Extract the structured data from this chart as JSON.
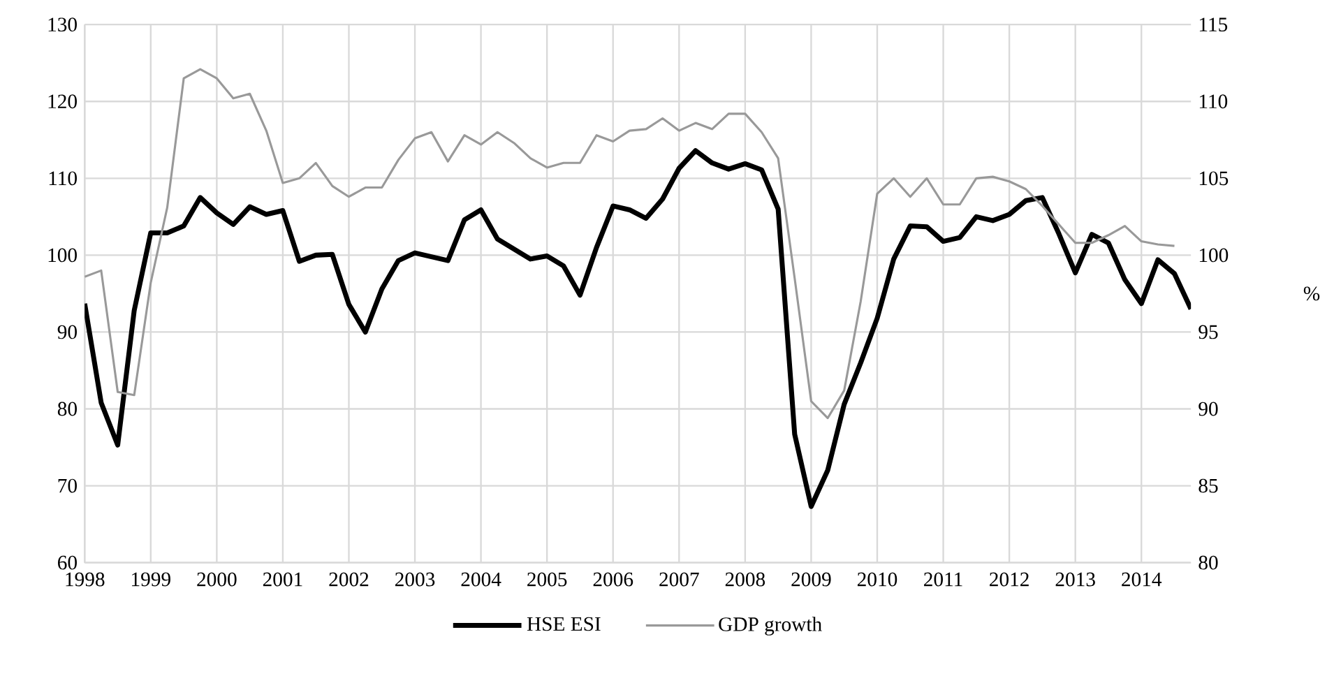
{
  "chart_data": {
    "type": "line",
    "y2label": "%",
    "legend": "bottom",
    "grid": true,
    "x": [
      1998,
      1998.25,
      1998.5,
      1998.75,
      1999,
      1999.25,
      1999.5,
      1999.75,
      2000,
      2000.25,
      2000.5,
      2000.75,
      2001,
      2001.25,
      2001.5,
      2001.75,
      2002,
      2002.25,
      2002.5,
      2002.75,
      2003,
      2003.25,
      2003.5,
      2003.75,
      2004,
      2004.25,
      2004.5,
      2004.75,
      2005,
      2005.25,
      2005.5,
      2005.75,
      2006,
      2006.25,
      2006.5,
      2006.75,
      2007,
      2007.25,
      2007.5,
      2007.75,
      2008,
      2008.25,
      2008.5,
      2008.75,
      2009,
      2009.25,
      2009.5,
      2009.75,
      2010,
      2010.25,
      2010.5,
      2010.75,
      2011,
      2011.25,
      2011.5,
      2011.75,
      2012,
      2012.25,
      2012.5,
      2012.75,
      2013,
      2013.25,
      2013.5,
      2013.75,
      2014,
      2014.25,
      2014.5,
      2014.75
    ],
    "xlim": [
      1998,
      2014.75
    ],
    "xticks": [
      1998,
      1999,
      2000,
      2001,
      2002,
      2003,
      2004,
      2005,
      2006,
      2007,
      2008,
      2009,
      2010,
      2011,
      2012,
      2013,
      2014
    ],
    "ylim": [
      60,
      130
    ],
    "yticks": [
      60,
      70,
      80,
      90,
      100,
      110,
      120,
      130
    ],
    "y2lim": [
      80,
      115
    ],
    "y2ticks": [
      80,
      85,
      90,
      95,
      100,
      105,
      110,
      115
    ],
    "series": [
      {
        "name": "HSE ESI",
        "color": "#000000",
        "values": [
          93.7,
          80.8,
          75.3,
          92.8,
          102.9,
          102.9,
          103.8,
          107.5,
          105.5,
          104.0,
          106.3,
          105.3,
          105.8,
          99.2,
          100.0,
          100.1,
          93.6,
          90.0,
          95.6,
          99.3,
          100.3,
          99.8,
          99.3,
          104.6,
          105.9,
          102.1,
          100.8,
          99.5,
          99.9,
          98.6,
          94.8,
          101.0,
          106.4,
          105.9,
          104.8,
          107.3,
          111.3,
          113.6,
          112.0,
          111.2,
          111.9,
          111.1,
          106.0,
          76.7,
          67.3,
          72.0,
          80.6,
          86.0,
          91.8,
          99.5,
          103.8,
          103.7,
          101.8,
          102.3,
          105.0,
          104.5,
          105.3,
          107.1,
          107.5,
          102.8,
          97.7,
          102.7,
          101.6,
          96.8,
          93.7,
          99.4,
          97.6,
          93.0
        ]
      },
      {
        "name": "GDP growth",
        "color": "#999999",
        "axis": "y2",
        "values": [
          98.6,
          99.0,
          91.1,
          90.9,
          98.2,
          103.1,
          111.5,
          112.1,
          111.5,
          110.2,
          110.5,
          108.1,
          104.7,
          105.0,
          106.0,
          104.5,
          103.8,
          104.4,
          104.4,
          106.2,
          107.6,
          108.0,
          106.1,
          107.8,
          107.2,
          108.0,
          107.3,
          106.3,
          105.7,
          106.0,
          106.0,
          107.8,
          107.4,
          108.1,
          108.2,
          108.9,
          108.1,
          108.6,
          108.2,
          109.2,
          109.2,
          108.0,
          106.3,
          98.5,
          90.5,
          89.4,
          91.2,
          97.0,
          104.0,
          105.0,
          103.8,
          105.0,
          103.3,
          103.3,
          105.0,
          105.1,
          104.8,
          104.3,
          103.2,
          102.0,
          100.8,
          100.8,
          101.3,
          101.9,
          100.9,
          100.7,
          100.6,
          null
        ]
      }
    ]
  }
}
